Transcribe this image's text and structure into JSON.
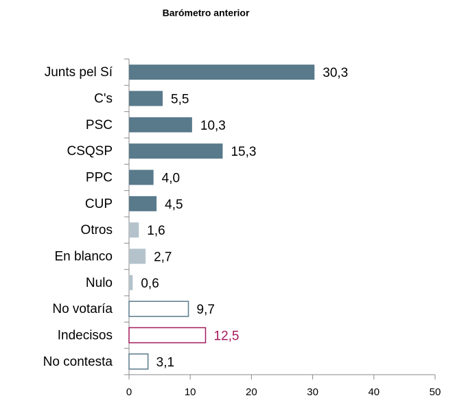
{
  "chart_data": {
    "type": "bar",
    "orientation": "horizontal",
    "title": "Barómetro anterior",
    "categories": [
      "Junts pel Sí",
      "C's",
      "PSC",
      "CSQSP",
      "PPC",
      "CUP",
      "Otros",
      "En blanco",
      "Nulo",
      "No votaría",
      "Indecisos",
      "No contesta"
    ],
    "values": [
      30.3,
      5.5,
      10.3,
      15.3,
      4.0,
      4.5,
      1.6,
      2.7,
      0.6,
      9.7,
      12.5,
      3.1
    ],
    "value_labels": [
      "30,3",
      "5,5",
      "10,3",
      "15,3",
      "4,0",
      "4,5",
      "1,6",
      "2,7",
      "0,6",
      "9,7",
      "12,5",
      "3,1"
    ],
    "colors": [
      "#587a8b",
      "#587a8b",
      "#587a8b",
      "#587a8b",
      "#587a8b",
      "#587a8b",
      "#b4c2cb",
      "#b4c2cb",
      "#b4c2cb",
      "#587a8b",
      "#a2195b",
      "#587a8b"
    ],
    "outlined": [
      false,
      false,
      false,
      false,
      false,
      false,
      false,
      false,
      false,
      true,
      true,
      true
    ],
    "label_colors": [
      "#000000",
      "#000000",
      "#000000",
      "#000000",
      "#000000",
      "#000000",
      "#000000",
      "#000000",
      "#000000",
      "#000000",
      "#a2195b",
      "#000000"
    ],
    "xlim": [
      0,
      50
    ],
    "xticks": [
      0,
      10,
      20,
      30,
      40,
      50
    ]
  }
}
